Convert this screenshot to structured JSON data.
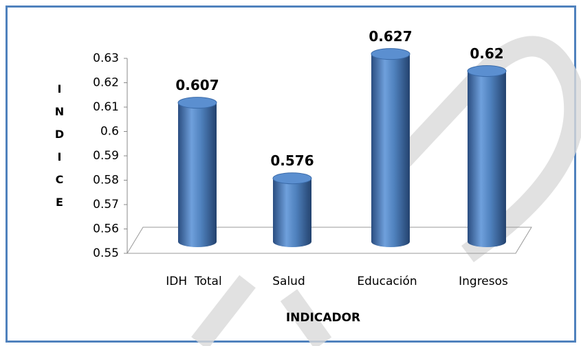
{
  "chart_data": {
    "type": "cylinder_bar",
    "categories": [
      "IDH  Total",
      "Salud",
      "Educación",
      "Ingresos"
    ],
    "values": [
      0.607,
      0.576,
      0.627,
      0.62
    ],
    "color": "#4f81bd",
    "ylim": [
      0.55,
      0.63
    ],
    "yticks": [
      0.55,
      0.56,
      0.57,
      0.58,
      0.59,
      0.6,
      0.61,
      0.62,
      0.63
    ],
    "y_label": "INDICE",
    "x_label": "INDICADOR",
    "grid": false
  }
}
